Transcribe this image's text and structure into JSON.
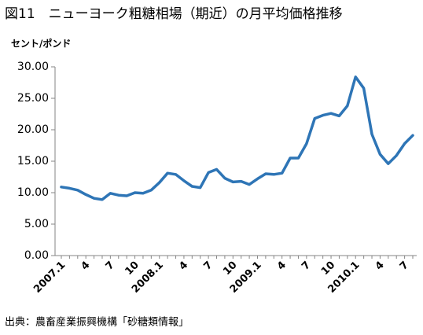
{
  "chart_data": {
    "type": "line",
    "title": "図11　ニューヨーク粗糖相場（期近）の月平均価格推移",
    "y_axis_label": "セント/ポンド",
    "source": "出典：農畜産業振興機構「砂糖類情報」",
    "categories": [
      "2007.1",
      null,
      null,
      "4",
      null,
      null,
      "7",
      null,
      null,
      "10",
      null,
      null,
      "2008.1",
      null,
      null,
      "4",
      null,
      null,
      "7",
      null,
      null,
      "10",
      null,
      null,
      "2009.1",
      null,
      null,
      "4",
      null,
      null,
      "7",
      null,
      null,
      "10",
      null,
      null,
      "2010.1",
      null,
      null,
      "4",
      null,
      null,
      "7",
      null
    ],
    "series": [
      {
        "name": "月平均価格",
        "color": "#2e75b6",
        "values": [
          10.9,
          10.7,
          10.4,
          9.7,
          9.1,
          8.9,
          9.9,
          9.6,
          9.5,
          10.0,
          9.9,
          10.4,
          11.6,
          13.1,
          12.9,
          11.9,
          11.0,
          10.8,
          13.2,
          13.7,
          12.3,
          11.7,
          11.8,
          11.3,
          12.2,
          13.0,
          12.9,
          13.1,
          15.5,
          15.5,
          17.8,
          21.8,
          22.3,
          22.6,
          22.2,
          23.8,
          28.4,
          26.6,
          19.3,
          16.1,
          14.6,
          15.9,
          17.8,
          19.1
        ]
      }
    ],
    "ylim": [
      0,
      30
    ],
    "yticks": [
      {
        "value": 0,
        "label": "0.00"
      },
      {
        "value": 5,
        "label": "5.00"
      },
      {
        "value": 10,
        "label": "10.00"
      },
      {
        "value": 15,
        "label": "15.00"
      },
      {
        "value": 20,
        "label": "20.00"
      },
      {
        "value": 25,
        "label": "25.00"
      },
      {
        "value": 30,
        "label": "30.00"
      }
    ],
    "grid": false,
    "legend": false
  }
}
